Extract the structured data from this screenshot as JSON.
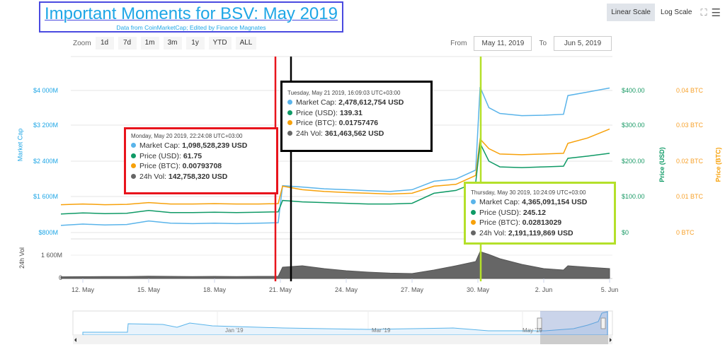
{
  "title": "Important Moments for BSV: May 2019",
  "subtitle": "Data from CoinMarketCap; Edited by Finance Magnates",
  "zoom": {
    "label": "Zoom",
    "buttons": [
      "1d",
      "7d",
      "1m",
      "3m",
      "1y",
      "YTD",
      "ALL"
    ]
  },
  "range": {
    "from_label": "From",
    "from": "May 11, 2019",
    "to_label": "To",
    "to": "Jun 5, 2019"
  },
  "scale": {
    "linear": "Linear Scale",
    "log": "Log Scale",
    "active": "linear"
  },
  "colors": {
    "market_cap": "#5ab4ea",
    "price_usd": "#0f9a66",
    "price_btc": "#f7a10a",
    "volume": "#666666",
    "red": "#e8141c",
    "black": "#000000",
    "green": "#b4e02a"
  },
  "tooltips": [
    {
      "header": "Monday, May 20 2019, 22:24:08 UTC+03:00",
      "rows": [
        {
          "label": "Market Cap:",
          "value": "1,098,528,239 USD"
        },
        {
          "label": "Price (USD):",
          "value": "61.75"
        },
        {
          "label": "Price (BTC):",
          "value": "0.00793708"
        },
        {
          "label": "24h Vol:",
          "value": "142,758,320 USD"
        }
      ]
    },
    {
      "header": "Tuesday, May 21 2019, 16:09:03 UTC+03:00",
      "rows": [
        {
          "label": "Market Cap:",
          "value": "2,478,612,754 USD"
        },
        {
          "label": "Price (USD):",
          "value": "139.31"
        },
        {
          "label": "Price (BTC):",
          "value": "0.01757476"
        },
        {
          "label": "24h Vol:",
          "value": "361,463,562 USD"
        }
      ]
    },
    {
      "header": "Thursday, May 30 2019, 10:24:09 UTC+03:00",
      "rows": [
        {
          "label": "Market Cap:",
          "value": "4,365,091,154 USD"
        },
        {
          "label": "Price (USD):",
          "value": "245.12"
        },
        {
          "label": "Price (BTC):",
          "value": "0.02813029"
        },
        {
          "label": "24h Vol:",
          "value": "2,191,119,869 USD"
        }
      ]
    }
  ],
  "chart_data": {
    "type": "line",
    "title": "Important Moments for BSV: May 2019",
    "x_start_day": "May 11",
    "x_ticks": [
      "12. May",
      "15. May",
      "18. May",
      "21. May",
      "24. May",
      "27. May",
      "30. May",
      "2. Jun",
      "5. Jun"
    ],
    "y_left": {
      "label": "Market Cap",
      "ticks": [
        "$800M",
        "$1 600M",
        "$2 400M",
        "$3 200M",
        "$4 000M"
      ],
      "range_millions": [
        800,
        4000
      ]
    },
    "y_right_usd": {
      "label": "Price (USD)",
      "ticks": [
        "$0",
        "$100.00",
        "$200.00",
        "$300.00",
        "$400.00"
      ],
      "range": [
        0,
        400
      ]
    },
    "y_right_btc": {
      "label": "Price (BTC)",
      "ticks": [
        "0 BTC",
        "0.01 BTC",
        "0.02 BTC",
        "0.03 BTC",
        "0.04 BTC"
      ],
      "range": [
        0,
        0.04
      ]
    },
    "y_volume": {
      "label": "24h Vol",
      "ticks": [
        "0",
        "1 600M"
      ],
      "range_millions": [
        0,
        2400
      ]
    },
    "days": [
      11,
      12,
      13,
      14,
      15,
      16,
      17,
      18,
      19,
      20,
      20.9,
      21.1,
      22,
      23,
      24,
      25,
      26,
      27,
      28,
      29,
      29.9,
      30.1,
      30.5,
      31,
      32,
      33,
      33.9,
      34.1,
      35,
      36
    ],
    "series": [
      {
        "name": "Market Cap",
        "unit": "M USD",
        "values": [
          960,
          990,
          970,
          980,
          1060,
          1010,
          1000,
          1010,
          1000,
          1010,
          1020,
          1850,
          1820,
          1780,
          1760,
          1740,
          1720,
          1760,
          1950,
          2000,
          2200,
          4060,
          3600,
          3470,
          3420,
          3430,
          3450,
          3870,
          3950,
          4040
        ]
      },
      {
        "name": "Price (USD)",
        "values": [
          52,
          55,
          53,
          54,
          62,
          56,
          56,
          57,
          56,
          57,
          58,
          90,
          86,
          84,
          82,
          80,
          80,
          82,
          110,
          118,
          140,
          250,
          200,
          184,
          182,
          184,
          186,
          208,
          214,
          222
        ]
      },
      {
        "name": "Price (BTC)",
        "values": [
          0.0078,
          0.008,
          0.0078,
          0.0079,
          0.0084,
          0.008,
          0.008,
          0.0081,
          0.008,
          0.008,
          0.0081,
          0.013,
          0.012,
          0.0115,
          0.0112,
          0.011,
          0.0108,
          0.011,
          0.013,
          0.0135,
          0.016,
          0.0262,
          0.0235,
          0.022,
          0.0218,
          0.022,
          0.0222,
          0.025,
          0.0265,
          0.029
        ]
      },
      {
        "name": "24h Vol",
        "unit": "M USD",
        "values": [
          120,
          130,
          140,
          140,
          160,
          150,
          140,
          150,
          140,
          150,
          150,
          800,
          900,
          700,
          550,
          450,
          380,
          350,
          600,
          900,
          1200,
          1900,
          1700,
          1400,
          1000,
          700,
          600,
          900,
          800,
          700
        ]
      }
    ],
    "navigator": {
      "ticks": [
        "Jan '19",
        "Mar '19",
        "May '19"
      ]
    },
    "annotations": [
      "red line at May 20 22:24",
      "black line at May 21 16:09",
      "green line at May 30 10:24"
    ]
  }
}
